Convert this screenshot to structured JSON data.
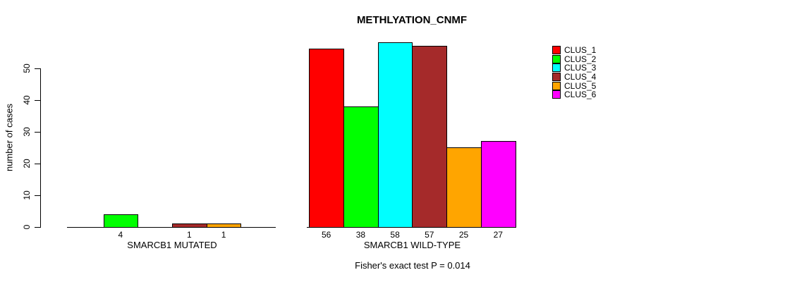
{
  "chart_data": {
    "type": "bar",
    "title": "METHLYATION_CNMF",
    "xlabel": "",
    "ylabel": "number of cases",
    "caption": "Fisher's exact test P = 0.014",
    "ylim": [
      0,
      50
    ],
    "yticks": [
      0,
      10,
      20,
      30,
      40,
      50
    ],
    "grid": false,
    "legend_position": "right",
    "series": [
      {
        "name": "CLUS_1",
        "color": "#FF0000"
      },
      {
        "name": "CLUS_2",
        "color": "#00FF00"
      },
      {
        "name": "CLUS_3",
        "color": "#00FFFF"
      },
      {
        "name": "CLUS_4",
        "color": "#A52A2A"
      },
      {
        "name": "CLUS_5",
        "color": "#FFA500"
      },
      {
        "name": "CLUS_6",
        "color": "#FF00FF"
      }
    ],
    "groups": [
      {
        "label": "SMARCB1 MUTATED",
        "values": [
          0,
          4,
          0,
          1,
          1,
          0
        ]
      },
      {
        "label": "SMARCB1 WILD-TYPE",
        "values": [
          56,
          38,
          58,
          57,
          25,
          27
        ]
      }
    ],
    "value_labels_shown_only_if_positive": true,
    "visible_bar_labels": [
      "4",
      "1",
      "1",
      "56",
      "38",
      "58",
      "57",
      "25",
      "27"
    ]
  }
}
